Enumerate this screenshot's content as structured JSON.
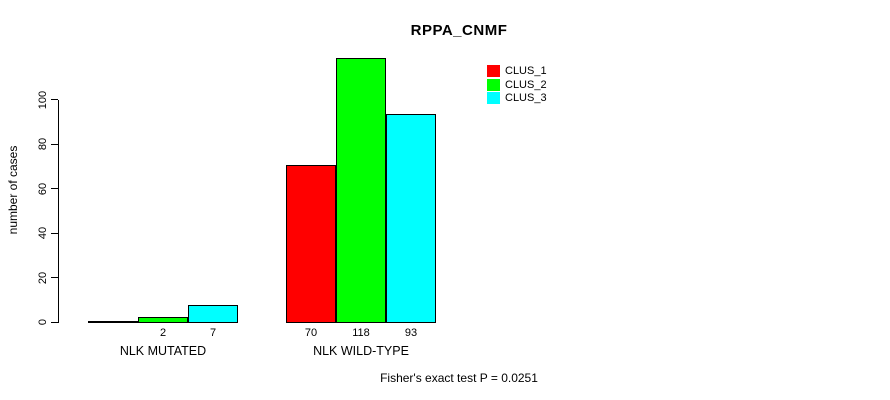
{
  "title": "RPPA_CNMF",
  "y_axis": {
    "label": "number of cases"
  },
  "legend": {
    "items": [
      {
        "label": "CLUS_1",
        "color": "#ff0000"
      },
      {
        "label": "CLUS_2",
        "color": "#00ff00"
      },
      {
        "label": "CLUS_3",
        "color": "#00ffff"
      }
    ]
  },
  "footer_note": "Fisher's exact test P = 0.0251",
  "chart_data": {
    "type": "bar",
    "title": "RPPA_CNMF",
    "ylabel": "number of cases",
    "xlabel": "",
    "categories": [
      "NLK MUTATED",
      "NLK WILD-TYPE"
    ],
    "series": [
      {
        "name": "CLUS_1",
        "color": "#ff0000",
        "values": [
          0,
          70
        ]
      },
      {
        "name": "CLUS_2",
        "color": "#00ff00",
        "values": [
          2,
          118
        ]
      },
      {
        "name": "CLUS_3",
        "color": "#00ffff",
        "values": [
          7,
          93
        ]
      }
    ],
    "bar_value_labels": [
      [
        null,
        "2",
        "7"
      ],
      [
        "70",
        "118",
        "93"
      ]
    ],
    "yticks": [
      0,
      20,
      40,
      60,
      80,
      100
    ],
    "ylim": [
      0,
      118
    ],
    "grid": false,
    "legend_position": "top-right",
    "annotation": "Fisher's exact test P = 0.0251"
  }
}
